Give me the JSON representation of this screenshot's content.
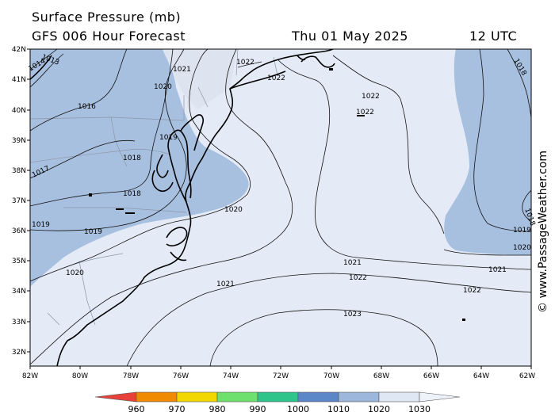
{
  "header": {
    "title": "Surface Pressure (mb)",
    "model": "GFS 006 Hour Forecast",
    "date": "Thu 01 May 2025",
    "time": "12 UTC"
  },
  "credit": "© www.PassageWeather.com",
  "latitudes": [
    "42N",
    "41N",
    "40N",
    "39N",
    "38N",
    "37N",
    "36N",
    "35N",
    "34N",
    "33N",
    "32N"
  ],
  "longitudes": [
    "82W",
    "80W",
    "78W",
    "76W",
    "74W",
    "72W",
    "70W",
    "68W",
    "66W",
    "64W",
    "62W"
  ],
  "isobar_labels": {
    "l1013": "1013",
    "l1014": "1014",
    "l1016": "1016",
    "l1017": "1017",
    "l1018a": "1018",
    "l1018b": "1018",
    "l1018c": "1018",
    "l1018d": "1018",
    "l1019a": "1019",
    "l1019b": "1019",
    "l1019c": "1019",
    "l1019d": "1019",
    "l1020a": "1020",
    "l1020b": "1020",
    "l1020c": "1020",
    "l1020d": "1020",
    "l1021a": "1021",
    "l1021b": "1021",
    "l1021c": "1021",
    "l1021d": "1021",
    "l1022a": "1022",
    "l1022b": "1022",
    "l1022c": "1022",
    "l1022d": "1022",
    "l1022e": "1022",
    "l1022f": "1022",
    "l1023": "1023"
  },
  "colorbar": {
    "labels": [
      "960",
      "970",
      "980",
      "990",
      "1000",
      "1010",
      "1020",
      "1030"
    ],
    "colors": [
      "#e8403a",
      "#f08a00",
      "#f2d800",
      "#6ee06e",
      "#2ec48a",
      "#5b87c8",
      "#9cb6dc",
      "#dfe7f4",
      "#eef2fa"
    ]
  },
  "colors": {
    "low": "#a8c0e0",
    "high": "#e4ebf6"
  }
}
